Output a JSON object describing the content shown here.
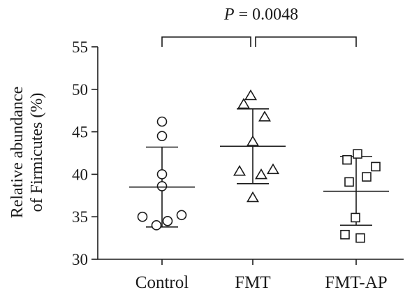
{
  "chart_data": {
    "type": "scatter",
    "categories": [
      "Control",
      "FMT",
      "FMT-AP"
    ],
    "ylabel_lines": [
      "Relative abundance",
      "of Firmicutes (%)"
    ],
    "ylim": [
      30,
      55
    ],
    "yticks": [
      30,
      35,
      40,
      45,
      50,
      55
    ],
    "grid": false,
    "legend": "none",
    "series": [
      {
        "category": "Control",
        "marker": "circle",
        "mean": 38.5,
        "sd_upper": 43.2,
        "sd_lower": 33.8,
        "values": [
          46.2,
          44.5,
          40.0,
          38.6,
          35.0,
          34.0,
          34.5,
          35.2
        ]
      },
      {
        "category": "FMT",
        "marker": "triangle",
        "mean": 43.3,
        "sd_upper": 47.7,
        "sd_lower": 38.9,
        "values": [
          49.2,
          48.2,
          46.7,
          43.8,
          40.3,
          39.9,
          40.5,
          37.2
        ]
      },
      {
        "category": "FMT-AP",
        "marker": "square",
        "mean": 38.0,
        "sd_upper": 42.1,
        "sd_lower": 34.0,
        "values": [
          42.4,
          41.7,
          40.9,
          39.7,
          39.1,
          34.9,
          32.9,
          32.5
        ]
      }
    ],
    "annotation": {
      "p_symbol": "P",
      "p_text": " = 0.0048"
    }
  }
}
